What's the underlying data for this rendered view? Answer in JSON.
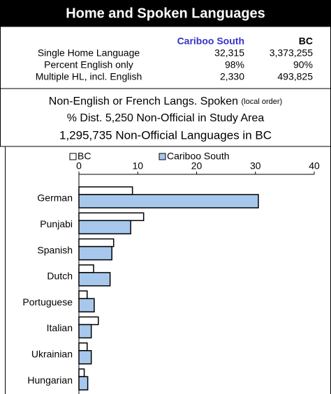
{
  "header": {
    "title": "Home and Spoken Languages"
  },
  "table": {
    "columns": [
      "Cariboo South",
      "BC"
    ],
    "rows": [
      {
        "label": "Single Home Language",
        "values": [
          "32,315",
          "3,373,255"
        ]
      },
      {
        "label": "Percent English only",
        "values": [
          "98%",
          "90%"
        ]
      },
      {
        "label": "Multiple HL, incl. English",
        "values": [
          "2,330",
          "493,825"
        ]
      }
    ]
  },
  "notes": {
    "heading": "Non-English or French Langs. Spoken",
    "qualifier": "(local order)",
    "lines": [
      "% Dist. 5,250 Non-Official in Study Area",
      "1,295,735 Non-Official Languages in BC"
    ]
  },
  "chart_data": {
    "type": "hbar",
    "categories": [
      "German",
      "Punjabi",
      "Spanish",
      "Dutch",
      "Portuguese",
      "Italian",
      "Ukrainian",
      "Hungarian"
    ],
    "series": [
      {
        "name": "BC",
        "color": "#ffffff",
        "values": [
          9.1,
          11.0,
          5.9,
          2.5,
          1.4,
          3.3,
          1.4,
          0.9
        ]
      },
      {
        "name": "Cariboo South",
        "color": "#a7c8ec",
        "values": [
          30.5,
          8.8,
          5.6,
          5.3,
          2.6,
          2.1,
          2.1,
          1.5
        ]
      }
    ],
    "xlim": [
      0,
      40
    ],
    "xticks": [
      0,
      10,
      20,
      30,
      40
    ]
  }
}
